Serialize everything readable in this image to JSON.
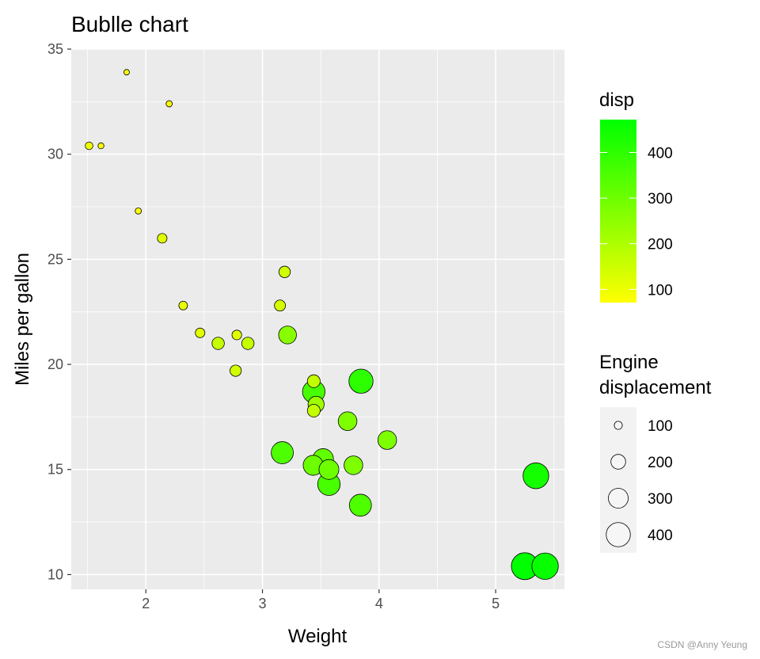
{
  "chart_data": {
    "type": "scatter",
    "title": "Bublle chart",
    "xlabel": "Weight",
    "ylabel": "Miles per gallon",
    "xlim": [
      1.36,
      5.59
    ],
    "ylim": [
      9.3,
      35.0
    ],
    "xticks": [
      2,
      3,
      4,
      5
    ],
    "yticks": [
      10,
      15,
      20,
      25,
      30,
      35
    ],
    "grid": true,
    "size_variable": "disp",
    "color_variable": "disp",
    "color_scale": {
      "low": "#ffff00",
      "high": "#00ff00",
      "limits": [
        71.1,
        472
      ]
    },
    "color_legend": {
      "title": "disp",
      "breaks": [
        100,
        200,
        300,
        400
      ]
    },
    "size_legend": {
      "title_lines": [
        "Engine",
        "displacement"
      ],
      "breaks": [
        100,
        200,
        300,
        400
      ]
    },
    "points": [
      {
        "x": 2.62,
        "y": 21.0,
        "size": 160
      },
      {
        "x": 2.875,
        "y": 21.0,
        "size": 160
      },
      {
        "x": 2.32,
        "y": 22.8,
        "size": 108
      },
      {
        "x": 3.215,
        "y": 21.4,
        "size": 258
      },
      {
        "x": 3.44,
        "y": 18.7,
        "size": 360
      },
      {
        "x": 3.46,
        "y": 18.1,
        "size": 225
      },
      {
        "x": 3.57,
        "y": 14.3,
        "size": 360
      },
      {
        "x": 3.19,
        "y": 24.4,
        "size": 146.7
      },
      {
        "x": 3.15,
        "y": 22.8,
        "size": 140.8
      },
      {
        "x": 3.44,
        "y": 19.2,
        "size": 167.6
      },
      {
        "x": 3.44,
        "y": 17.8,
        "size": 167.6
      },
      {
        "x": 4.07,
        "y": 16.4,
        "size": 275.8
      },
      {
        "x": 3.73,
        "y": 17.3,
        "size": 275.8
      },
      {
        "x": 3.78,
        "y": 15.2,
        "size": 275.8
      },
      {
        "x": 5.25,
        "y": 10.4,
        "size": 472
      },
      {
        "x": 5.424,
        "y": 10.4,
        "size": 460
      },
      {
        "x": 5.345,
        "y": 14.7,
        "size": 440
      },
      {
        "x": 2.2,
        "y": 32.4,
        "size": 78.7
      },
      {
        "x": 1.615,
        "y": 30.4,
        "size": 75.7
      },
      {
        "x": 1.835,
        "y": 33.9,
        "size": 71.1
      },
      {
        "x": 2.465,
        "y": 21.5,
        "size": 120.1
      },
      {
        "x": 3.52,
        "y": 15.5,
        "size": 318
      },
      {
        "x": 3.435,
        "y": 15.2,
        "size": 304
      },
      {
        "x": 3.84,
        "y": 13.3,
        "size": 350
      },
      {
        "x": 3.845,
        "y": 19.2,
        "size": 400
      },
      {
        "x": 1.935,
        "y": 27.3,
        "size": 79
      },
      {
        "x": 2.14,
        "y": 26.0,
        "size": 120.3
      },
      {
        "x": 1.513,
        "y": 30.4,
        "size": 95.1
      },
      {
        "x": 3.17,
        "y": 15.8,
        "size": 351
      },
      {
        "x": 2.77,
        "y": 19.7,
        "size": 145
      },
      {
        "x": 3.57,
        "y": 15.0,
        "size": 301
      },
      {
        "x": 2.78,
        "y": 21.4,
        "size": 121
      }
    ]
  },
  "watermark": "CSDN @Anny Yeung"
}
